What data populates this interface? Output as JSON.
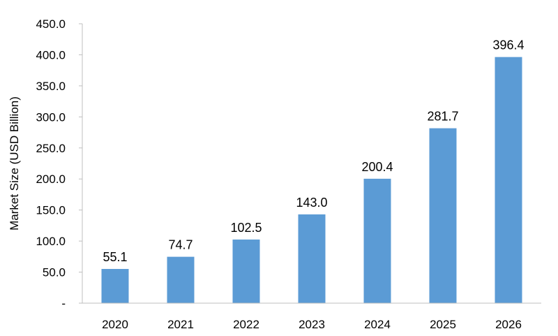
{
  "chart_data": {
    "type": "bar",
    "categories": [
      "2020",
      "2021",
      "2022",
      "2023",
      "2024",
      "2025",
      "2026"
    ],
    "values": [
      55.1,
      74.7,
      102.5,
      143.0,
      200.4,
      281.7,
      396.4
    ],
    "value_labels": [
      "55.1",
      "74.7",
      "102.5",
      "143.0",
      "200.4",
      "281.7",
      "396.4"
    ],
    "ylabel": "Market Size (USD Billion)",
    "ylim": [
      0,
      450
    ],
    "y_ticks": [
      {
        "value": 0,
        "label": "-"
      },
      {
        "value": 50,
        "label": "50.0"
      },
      {
        "value": 100,
        "label": "100.0"
      },
      {
        "value": 150,
        "label": "150.0"
      },
      {
        "value": 200,
        "label": "200.0"
      },
      {
        "value": 250,
        "label": "250.0"
      },
      {
        "value": 300,
        "label": "300.0"
      },
      {
        "value": 350,
        "label": "350.0"
      },
      {
        "value": 400,
        "label": "400.0"
      },
      {
        "value": 450,
        "label": "450.0"
      }
    ],
    "grid": false,
    "legend": "none",
    "bar_color": "#5b9bd5",
    "axis_color": "#bfbfbf"
  }
}
